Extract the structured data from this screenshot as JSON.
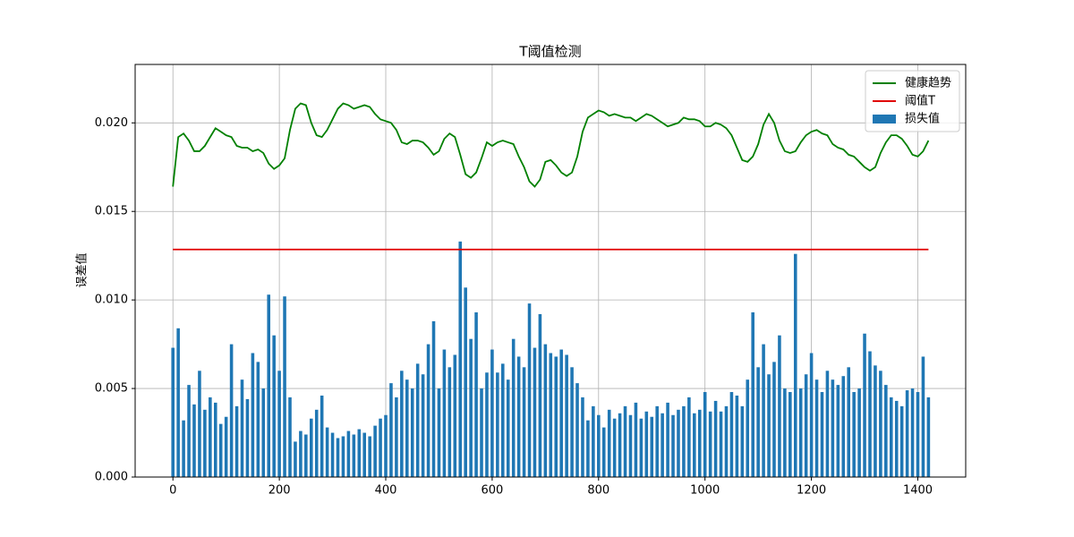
{
  "chart_data": {
    "type": "bar",
    "title": "T阈值检测",
    "ylabel": "误差值",
    "x": [
      0,
      10,
      20,
      30,
      40,
      50,
      60,
      70,
      80,
      90,
      100,
      110,
      120,
      130,
      140,
      150,
      160,
      170,
      180,
      190,
      200,
      210,
      220,
      230,
      240,
      250,
      260,
      270,
      280,
      290,
      300,
      310,
      320,
      330,
      340,
      350,
      360,
      370,
      380,
      390,
      400,
      410,
      420,
      430,
      440,
      450,
      460,
      470,
      480,
      490,
      500,
      510,
      520,
      530,
      540,
      550,
      560,
      570,
      580,
      590,
      600,
      610,
      620,
      630,
      640,
      650,
      660,
      670,
      680,
      690,
      700,
      710,
      720,
      730,
      740,
      750,
      760,
      770,
      780,
      790,
      800,
      810,
      820,
      830,
      840,
      850,
      860,
      870,
      880,
      890,
      900,
      910,
      920,
      930,
      940,
      950,
      960,
      970,
      980,
      990,
      1000,
      1010,
      1020,
      1030,
      1040,
      1050,
      1060,
      1070,
      1080,
      1090,
      1100,
      1110,
      1120,
      1130,
      1140,
      1150,
      1160,
      1170,
      1180,
      1190,
      1200,
      1210,
      1220,
      1230,
      1240,
      1250,
      1260,
      1270,
      1280,
      1290,
      1300,
      1310,
      1320,
      1330,
      1340,
      1350,
      1360,
      1370,
      1380,
      1390,
      1400,
      1410,
      1420
    ],
    "series": [
      {
        "name": "健康趋势",
        "type": "line",
        "color": "#008000",
        "values": [
          0.0164,
          0.0192,
          0.0194,
          0.019,
          0.0184,
          0.0184,
          0.0187,
          0.0192,
          0.0197,
          0.0195,
          0.0193,
          0.0192,
          0.0187,
          0.0186,
          0.0186,
          0.0184,
          0.0185,
          0.0183,
          0.0177,
          0.0174,
          0.0176,
          0.018,
          0.0196,
          0.0208,
          0.0211,
          0.021,
          0.02,
          0.0193,
          0.0192,
          0.0196,
          0.0202,
          0.0208,
          0.0211,
          0.021,
          0.0208,
          0.0209,
          0.021,
          0.0209,
          0.0205,
          0.0202,
          0.0201,
          0.02,
          0.0196,
          0.0189,
          0.0188,
          0.019,
          0.019,
          0.0189,
          0.0186,
          0.0182,
          0.0184,
          0.0191,
          0.0194,
          0.0192,
          0.0182,
          0.0171,
          0.0169,
          0.0172,
          0.018,
          0.0189,
          0.0187,
          0.0189,
          0.019,
          0.0189,
          0.0188,
          0.0181,
          0.0175,
          0.0167,
          0.0164,
          0.0168,
          0.0178,
          0.0179,
          0.0176,
          0.0172,
          0.017,
          0.0172,
          0.0181,
          0.0195,
          0.0203,
          0.0205,
          0.0207,
          0.0206,
          0.0204,
          0.0205,
          0.0204,
          0.0203,
          0.0203,
          0.0201,
          0.0203,
          0.0205,
          0.0204,
          0.0202,
          0.02,
          0.0198,
          0.0199,
          0.02,
          0.0203,
          0.0202,
          0.0202,
          0.0201,
          0.0198,
          0.0198,
          0.02,
          0.0199,
          0.0197,
          0.0193,
          0.0186,
          0.0179,
          0.0178,
          0.0181,
          0.0188,
          0.0199,
          0.0205,
          0.02,
          0.019,
          0.0184,
          0.0183,
          0.0184,
          0.0189,
          0.0193,
          0.0195,
          0.0196,
          0.0194,
          0.0193,
          0.0188,
          0.0186,
          0.0185,
          0.0182,
          0.0181,
          0.0178,
          0.0175,
          0.0173,
          0.0175,
          0.0183,
          0.0189,
          0.0193,
          0.0193,
          0.0191,
          0.0187,
          0.0182,
          0.0181,
          0.0184,
          0.019
        ]
      },
      {
        "name": "阈值T",
        "type": "line",
        "color": "#e00000",
        "x": [
          0,
          1420
        ],
        "values": [
          0.01285,
          0.01285
        ]
      },
      {
        "name": "损失值",
        "type": "bar",
        "color": "#1f77b4",
        "values": [
          0.0073,
          0.0084,
          0.0032,
          0.0052,
          0.0041,
          0.006,
          0.0038,
          0.0045,
          0.0042,
          0.003,
          0.0034,
          0.0075,
          0.004,
          0.0055,
          0.0044,
          0.007,
          0.0065,
          0.005,
          0.0103,
          0.008,
          0.006,
          0.0102,
          0.0045,
          0.002,
          0.0026,
          0.0024,
          0.0033,
          0.0038,
          0.0046,
          0.0028,
          0.0025,
          0.0022,
          0.0023,
          0.0026,
          0.0024,
          0.0027,
          0.0025,
          0.0023,
          0.0029,
          0.0033,
          0.0035,
          0.0053,
          0.0045,
          0.006,
          0.0055,
          0.005,
          0.0064,
          0.0058,
          0.0075,
          0.0088,
          0.005,
          0.0072,
          0.0062,
          0.0069,
          0.0133,
          0.0107,
          0.0078,
          0.0093,
          0.005,
          0.0059,
          0.0072,
          0.0059,
          0.0064,
          0.0055,
          0.0078,
          0.0068,
          0.0062,
          0.0098,
          0.0073,
          0.0092,
          0.0075,
          0.007,
          0.0068,
          0.0072,
          0.0069,
          0.0062,
          0.0053,
          0.0045,
          0.0032,
          0.004,
          0.0035,
          0.0028,
          0.0038,
          0.0033,
          0.0036,
          0.004,
          0.0035,
          0.0042,
          0.0033,
          0.0037,
          0.0034,
          0.004,
          0.0036,
          0.0042,
          0.0035,
          0.0038,
          0.004,
          0.0045,
          0.0036,
          0.0038,
          0.0048,
          0.0037,
          0.0043,
          0.0037,
          0.004,
          0.0048,
          0.0046,
          0.004,
          0.0055,
          0.0093,
          0.0062,
          0.0075,
          0.0058,
          0.0065,
          0.008,
          0.005,
          0.0048,
          0.0126,
          0.005,
          0.0058,
          0.007,
          0.0055,
          0.0048,
          0.006,
          0.0055,
          0.0052,
          0.0057,
          0.0062,
          0.0048,
          0.005,
          0.0081,
          0.0071,
          0.0063,
          0.006,
          0.0052,
          0.0045,
          0.0043,
          0.004,
          0.0049,
          0.005,
          0.0048,
          0.0068,
          0.0045
        ]
      }
    ],
    "xlim": [
      -71,
      1490
    ],
    "xticks": [
      0,
      200,
      400,
      600,
      800,
      1000,
      1200,
      1400
    ],
    "ylim": [
      0,
      0.0233
    ],
    "yticks": [
      {
        "value": 0,
        "label": "0.000"
      },
      {
        "value": 0.005,
        "label": "0.005"
      },
      {
        "value": 0.01,
        "label": "0.010"
      },
      {
        "value": 0.015,
        "label": "0.015"
      },
      {
        "value": 0.02,
        "label": "0.020"
      }
    ],
    "grid": true,
    "legend": "upper right"
  }
}
